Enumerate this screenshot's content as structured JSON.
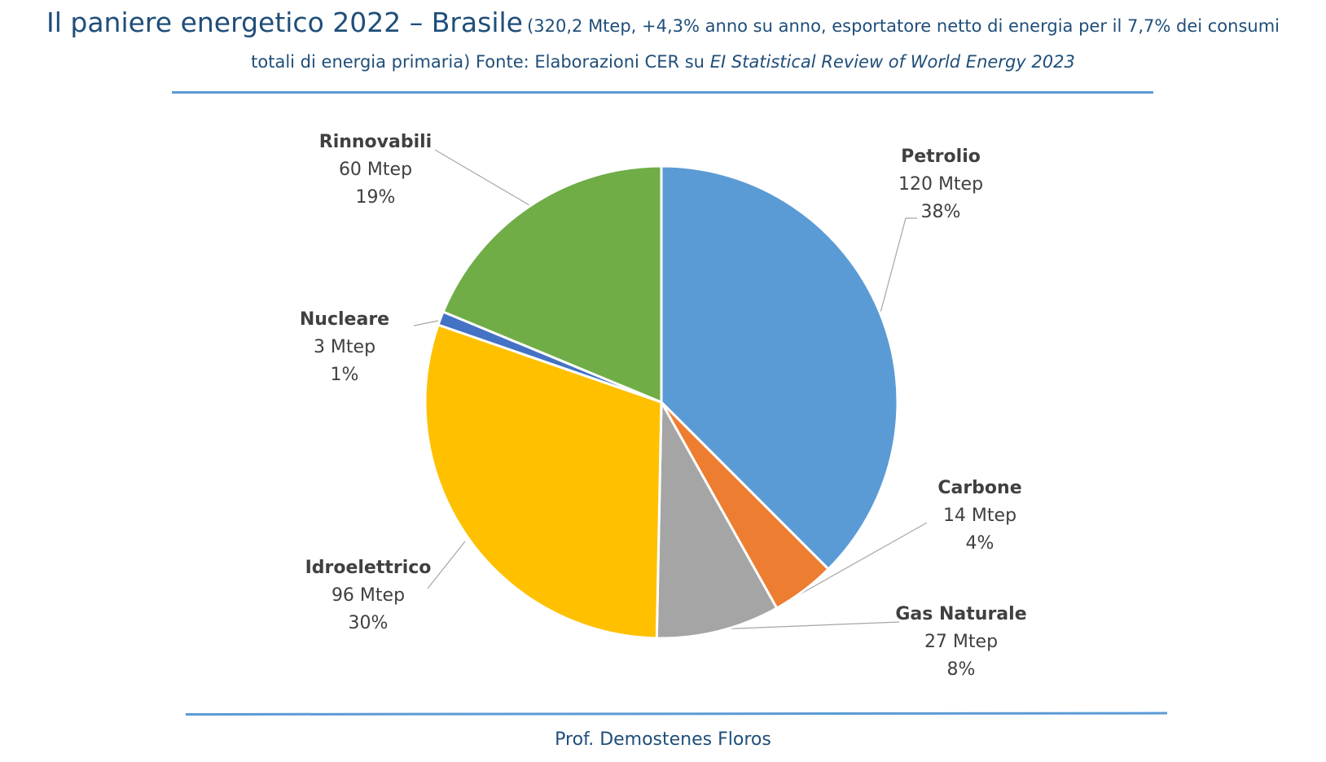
{
  "title": {
    "main": "Il paniere energetico 2022 – Brasile",
    "subtitle_part1": "(320,2 Mtep, +4,3% anno su anno, esportatore netto di energia per il 7,7% dei consumi",
    "subtitle_part2": "totali di energia primaria) Fonte: Elaborazioni CER su",
    "source_italic": "EI Statistical Review of World Energy 2023"
  },
  "footer": {
    "author": "Prof. Demostenes Floros"
  },
  "colors": {
    "title": "#1f4e79",
    "rule": "#5b9bd5",
    "label_text": "#404040",
    "leader_line": "#a6a6a6"
  },
  "chart_data": {
    "type": "pie",
    "unit": "Mtep",
    "start_angle_deg": 0,
    "direction": "clockwise",
    "slices": [
      {
        "name": "Petrolio",
        "value": 120,
        "display_value": "120 Mtep",
        "display_percent": "38%",
        "color": "#5b9bd5"
      },
      {
        "name": "Carbone",
        "value": 14,
        "display_value": "14 Mtep",
        "display_percent": "4%",
        "color": "#ed7d31"
      },
      {
        "name": "Gas Naturale",
        "value": 27,
        "display_value": "27 Mtep",
        "display_percent": "8%",
        "color": "#a5a5a5"
      },
      {
        "name": "Idroelettrico",
        "value": 96,
        "display_value": "96 Mtep",
        "display_percent": "30%",
        "color": "#ffc000"
      },
      {
        "name": "Nucleare",
        "value": 3,
        "display_value": "3 Mtep",
        "display_percent": "1%",
        "color": "#4472c4"
      },
      {
        "name": "Rinnovabili",
        "value": 60,
        "display_value": "60 Mtep",
        "display_percent": "19%",
        "color": "#70ad47"
      }
    ]
  }
}
